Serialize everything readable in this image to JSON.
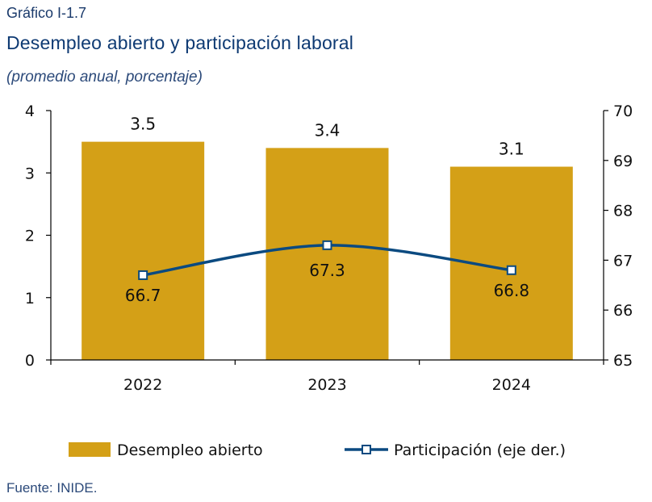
{
  "header": {
    "chart_number": "Gráfico I-1.7",
    "title": "Desempleo abierto y participación laboral",
    "subtitle": "(promedio anual, porcentaje)"
  },
  "footer": {
    "source": "Fuente: INIDE."
  },
  "colors": {
    "bar": "#d4a017",
    "line": "#0b4a80",
    "marker_fill": "#ffffff"
  },
  "chart_data": {
    "type": "bar",
    "categories": [
      "2022",
      "2023",
      "2024"
    ],
    "series": [
      {
        "name": "Desempleo abierto",
        "type": "bar",
        "axis": "left",
        "values": [
          3.5,
          3.4,
          3.1
        ],
        "labels": [
          "3.5",
          "3.4",
          "3.1"
        ]
      },
      {
        "name": "Participación (eje der.)",
        "type": "line",
        "axis": "right",
        "values": [
          66.7,
          67.3,
          66.8
        ],
        "labels": [
          "66.7",
          "67.3",
          "66.8"
        ],
        "marker": "square",
        "smooth": true
      }
    ],
    "y_left": {
      "min": 0,
      "max": 4,
      "ticks": [
        "0",
        "1",
        "2",
        "3",
        "4"
      ]
    },
    "y_right": {
      "min": 65,
      "max": 70,
      "ticks": [
        "65",
        "66",
        "67",
        "68",
        "69",
        "70"
      ]
    },
    "legend_position": "bottom",
    "grid": false
  }
}
